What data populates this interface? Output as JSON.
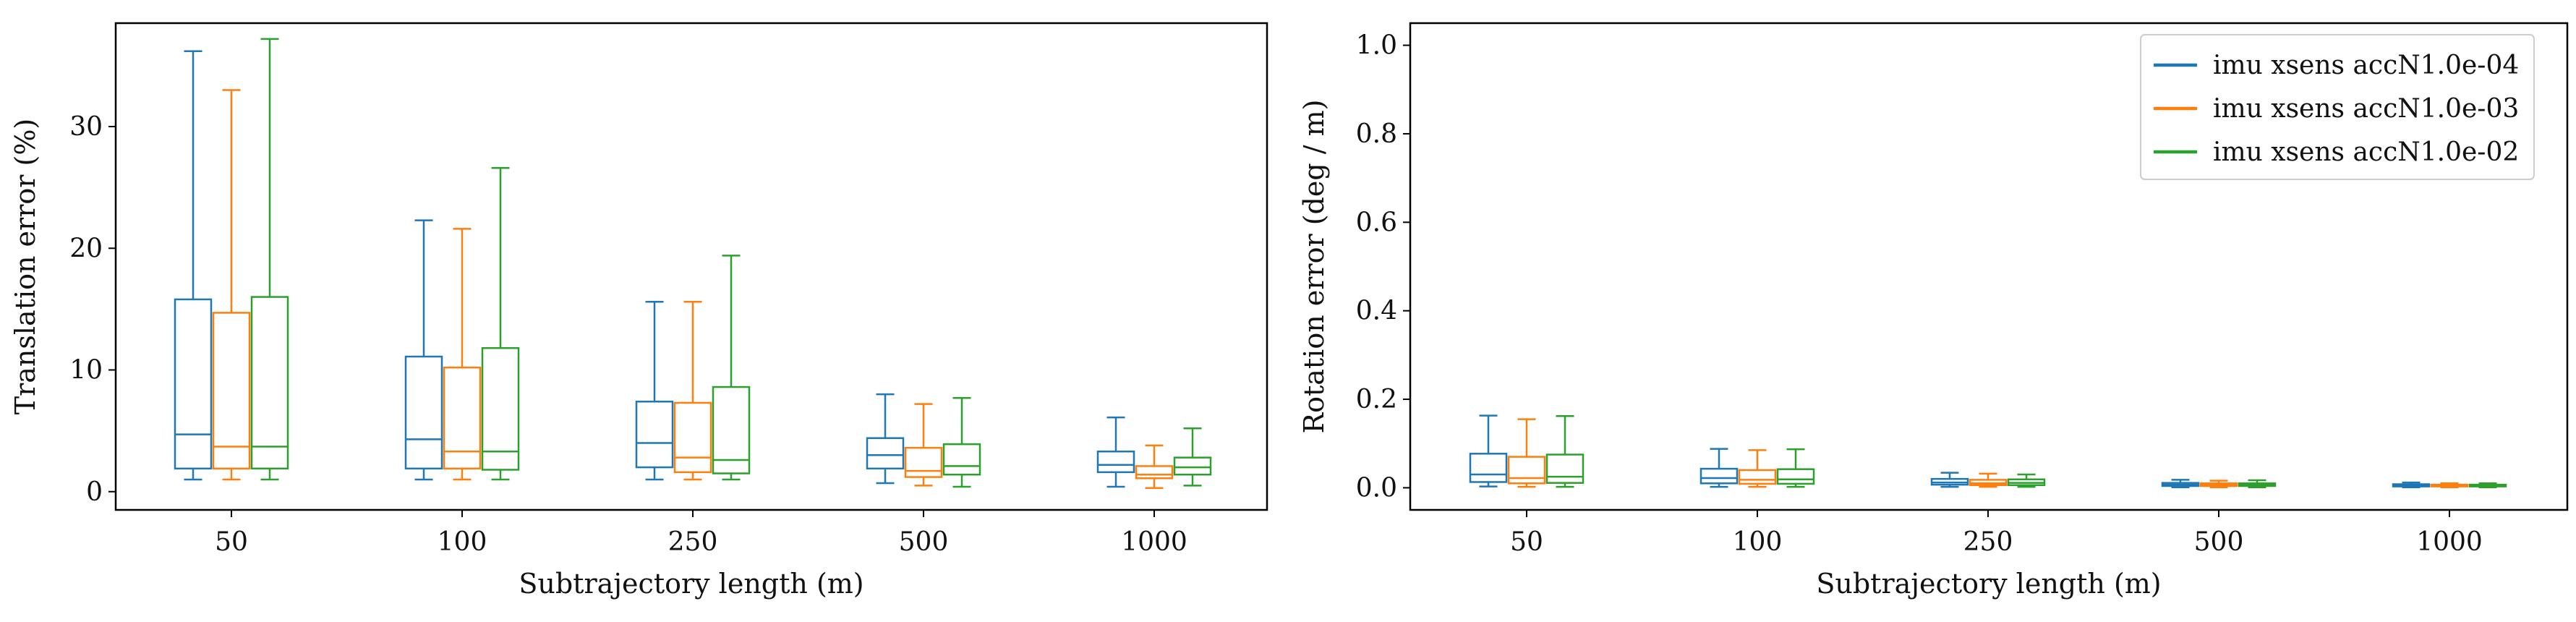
{
  "colors": {
    "series_1": "#1f77b4",
    "series_2": "#ff7f0e",
    "series_3": "#2ca02c"
  },
  "chart_data": [
    {
      "type": "boxplot",
      "title": "",
      "xlabel": "Subtrajectory length (m)",
      "ylabel": "Translation error (%)",
      "categories": [
        "50",
        "100",
        "250",
        "500",
        "1000"
      ],
      "ylim": [
        -1.5,
        38.5
      ],
      "yticks": [
        0,
        10,
        20,
        30
      ],
      "series": [
        {
          "name": "imu xsens accN1.0e-04",
          "boxes": [
            {
              "whislo": 1.0,
              "q1": 1.9,
              "med": 4.7,
              "q3": 15.8,
              "whishi": 36.2
            },
            {
              "whislo": 1.0,
              "q1": 1.9,
              "med": 4.3,
              "q3": 11.1,
              "whishi": 22.3
            },
            {
              "whislo": 1.0,
              "q1": 2.0,
              "med": 4.0,
              "q3": 7.4,
              "whishi": 15.6
            },
            {
              "whislo": 0.7,
              "q1": 1.9,
              "med": 3.0,
              "q3": 4.4,
              "whishi": 8.0
            },
            {
              "whislo": 0.4,
              "q1": 1.6,
              "med": 2.2,
              "q3": 3.3,
              "whishi": 6.1
            }
          ]
        },
        {
          "name": "imu xsens accN1.0e-03",
          "boxes": [
            {
              "whislo": 1.0,
              "q1": 1.9,
              "med": 3.7,
              "q3": 14.7,
              "whishi": 33.0
            },
            {
              "whislo": 1.0,
              "q1": 1.9,
              "med": 3.3,
              "q3": 10.2,
              "whishi": 21.6
            },
            {
              "whislo": 1.0,
              "q1": 1.6,
              "med": 2.8,
              "q3": 7.3,
              "whishi": 15.6
            },
            {
              "whislo": 0.5,
              "q1": 1.2,
              "med": 1.7,
              "q3": 3.6,
              "whishi": 7.2
            },
            {
              "whislo": 0.3,
              "q1": 1.1,
              "med": 1.4,
              "q3": 2.1,
              "whishi": 3.8
            }
          ]
        },
        {
          "name": "imu xsens accN1.0e-02",
          "boxes": [
            {
              "whislo": 1.0,
              "q1": 1.9,
              "med": 3.7,
              "q3": 16.0,
              "whishi": 37.2
            },
            {
              "whislo": 1.0,
              "q1": 1.8,
              "med": 3.3,
              "q3": 11.8,
              "whishi": 26.6
            },
            {
              "whislo": 1.0,
              "q1": 1.5,
              "med": 2.6,
              "q3": 8.6,
              "whishi": 19.4
            },
            {
              "whislo": 0.4,
              "q1": 1.4,
              "med": 2.1,
              "q3": 3.9,
              "whishi": 7.7
            },
            {
              "whislo": 0.5,
              "q1": 1.4,
              "med": 2.0,
              "q3": 2.8,
              "whishi": 5.2
            }
          ]
        }
      ]
    },
    {
      "type": "boxplot",
      "title": "",
      "xlabel": "Subtrajectory length (m)",
      "ylabel": "Rotation error (deg / m)",
      "categories": [
        "50",
        "100",
        "250",
        "500",
        "1000"
      ],
      "ylim": [
        -0.05,
        1.05
      ],
      "yticks": [
        "0.0",
        "0.2",
        "0.4",
        "0.6",
        "0.8",
        "1.0"
      ],
      "legend_position": "top-right",
      "series": [
        {
          "name": "imu xsens accN1.0e-04",
          "boxes": [
            {
              "whislo": 0.003,
              "q1": 0.013,
              "med": 0.03,
              "q3": 0.077,
              "whishi": 0.163
            },
            {
              "whislo": 0.002,
              "q1": 0.01,
              "med": 0.022,
              "q3": 0.043,
              "whishi": 0.088
            },
            {
              "whislo": 0.002,
              "q1": 0.007,
              "med": 0.012,
              "q3": 0.02,
              "whishi": 0.034
            },
            {
              "whislo": 0.001,
              "q1": 0.004,
              "med": 0.007,
              "q3": 0.011,
              "whishi": 0.018
            },
            {
              "whislo": 0.001,
              "q1": 0.003,
              "med": 0.005,
              "q3": 0.008,
              "whishi": 0.012
            }
          ]
        },
        {
          "name": "imu xsens accN1.0e-03",
          "boxes": [
            {
              "whislo": 0.002,
              "q1": 0.01,
              "med": 0.022,
              "q3": 0.07,
              "whishi": 0.155
            },
            {
              "whislo": 0.002,
              "q1": 0.009,
              "med": 0.018,
              "q3": 0.04,
              "whishi": 0.085
            },
            {
              "whislo": 0.002,
              "q1": 0.006,
              "med": 0.01,
              "q3": 0.018,
              "whishi": 0.032
            },
            {
              "whislo": 0.001,
              "q1": 0.004,
              "med": 0.006,
              "q3": 0.01,
              "whishi": 0.016
            },
            {
              "whislo": 0.001,
              "q1": 0.003,
              "med": 0.005,
              "q3": 0.007,
              "whishi": 0.01
            }
          ]
        },
        {
          "name": "imu xsens accN1.0e-02",
          "boxes": [
            {
              "whislo": 0.002,
              "q1": 0.011,
              "med": 0.025,
              "q3": 0.075,
              "whishi": 0.162
            },
            {
              "whislo": 0.002,
              "q1": 0.009,
              "med": 0.019,
              "q3": 0.042,
              "whishi": 0.087
            },
            {
              "whislo": 0.002,
              "q1": 0.006,
              "med": 0.011,
              "q3": 0.019,
              "whishi": 0.03
            },
            {
              "whislo": 0.001,
              "q1": 0.004,
              "med": 0.006,
              "q3": 0.01,
              "whishi": 0.017
            },
            {
              "whislo": 0.001,
              "q1": 0.003,
              "med": 0.005,
              "q3": 0.007,
              "whishi": 0.01
            }
          ]
        }
      ]
    }
  ]
}
